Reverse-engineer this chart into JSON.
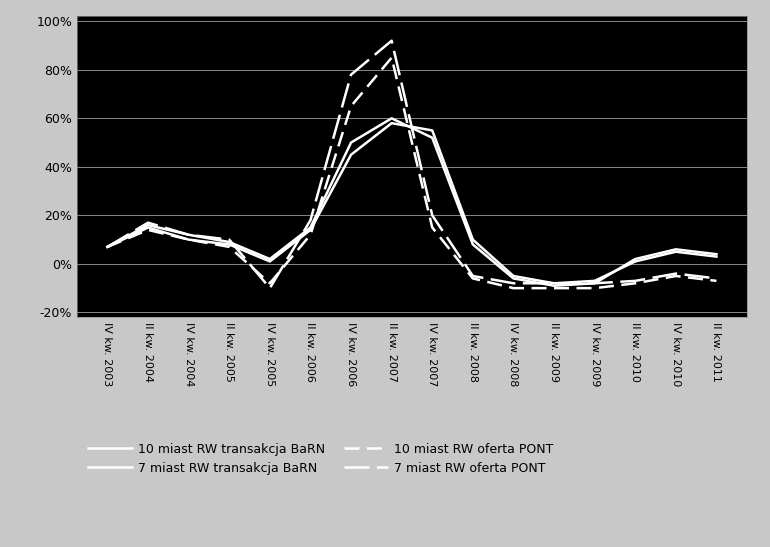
{
  "background_color": "#c8c8c8",
  "plot_bg_color": "#000000",
  "text_color": "#000000",
  "grid_color": "#888888",
  "line_color": "#ffffff",
  "ylim": [
    -0.22,
    1.02
  ],
  "yticks": [
    -0.2,
    0.0,
    0.2,
    0.4,
    0.6,
    0.8,
    1.0
  ],
  "legend_entries": [
    "10 miast RW transakcja BaRN",
    "7 miast RW transakcja BaRN",
    "10 miast RW oferta PONT",
    "7 miast RW oferta PONT"
  ],
  "x_labels": [
    "IV kw. 2003",
    "II kw. 2004",
    "IV kw. 2004",
    "II kw. 2005",
    "IV kw. 2005",
    "II kw. 2006",
    "IV kw. 2006",
    "II kw. 2007",
    "IV kw. 2007",
    "II kw. 2008",
    "IV kw. 2008",
    "II kw. 2009",
    "IV kw. 2009",
    "II kw. 2010",
    "IV kw. 2010",
    "II kw. 2011"
  ],
  "series": {
    "trans10": [
      0.07,
      0.15,
      0.1,
      0.08,
      0.01,
      0.14,
      0.45,
      0.58,
      0.55,
      0.1,
      -0.05,
      -0.08,
      -0.07,
      0.01,
      0.05,
      0.03
    ],
    "trans7": [
      0.07,
      0.16,
      0.12,
      0.09,
      0.02,
      0.15,
      0.5,
      0.6,
      0.52,
      0.08,
      -0.06,
      -0.09,
      -0.08,
      0.02,
      0.06,
      0.04
    ],
    "offer10": [
      0.07,
      0.14,
      0.1,
      0.07,
      -0.08,
      0.12,
      0.65,
      0.85,
      0.15,
      -0.06,
      -0.1,
      -0.1,
      -0.1,
      -0.08,
      -0.05,
      -0.07
    ],
    "offer7": [
      0.07,
      0.17,
      0.12,
      0.1,
      -0.1,
      0.18,
      0.78,
      0.92,
      0.2,
      -0.05,
      -0.08,
      -0.08,
      -0.08,
      -0.07,
      -0.04,
      -0.06
    ]
  }
}
